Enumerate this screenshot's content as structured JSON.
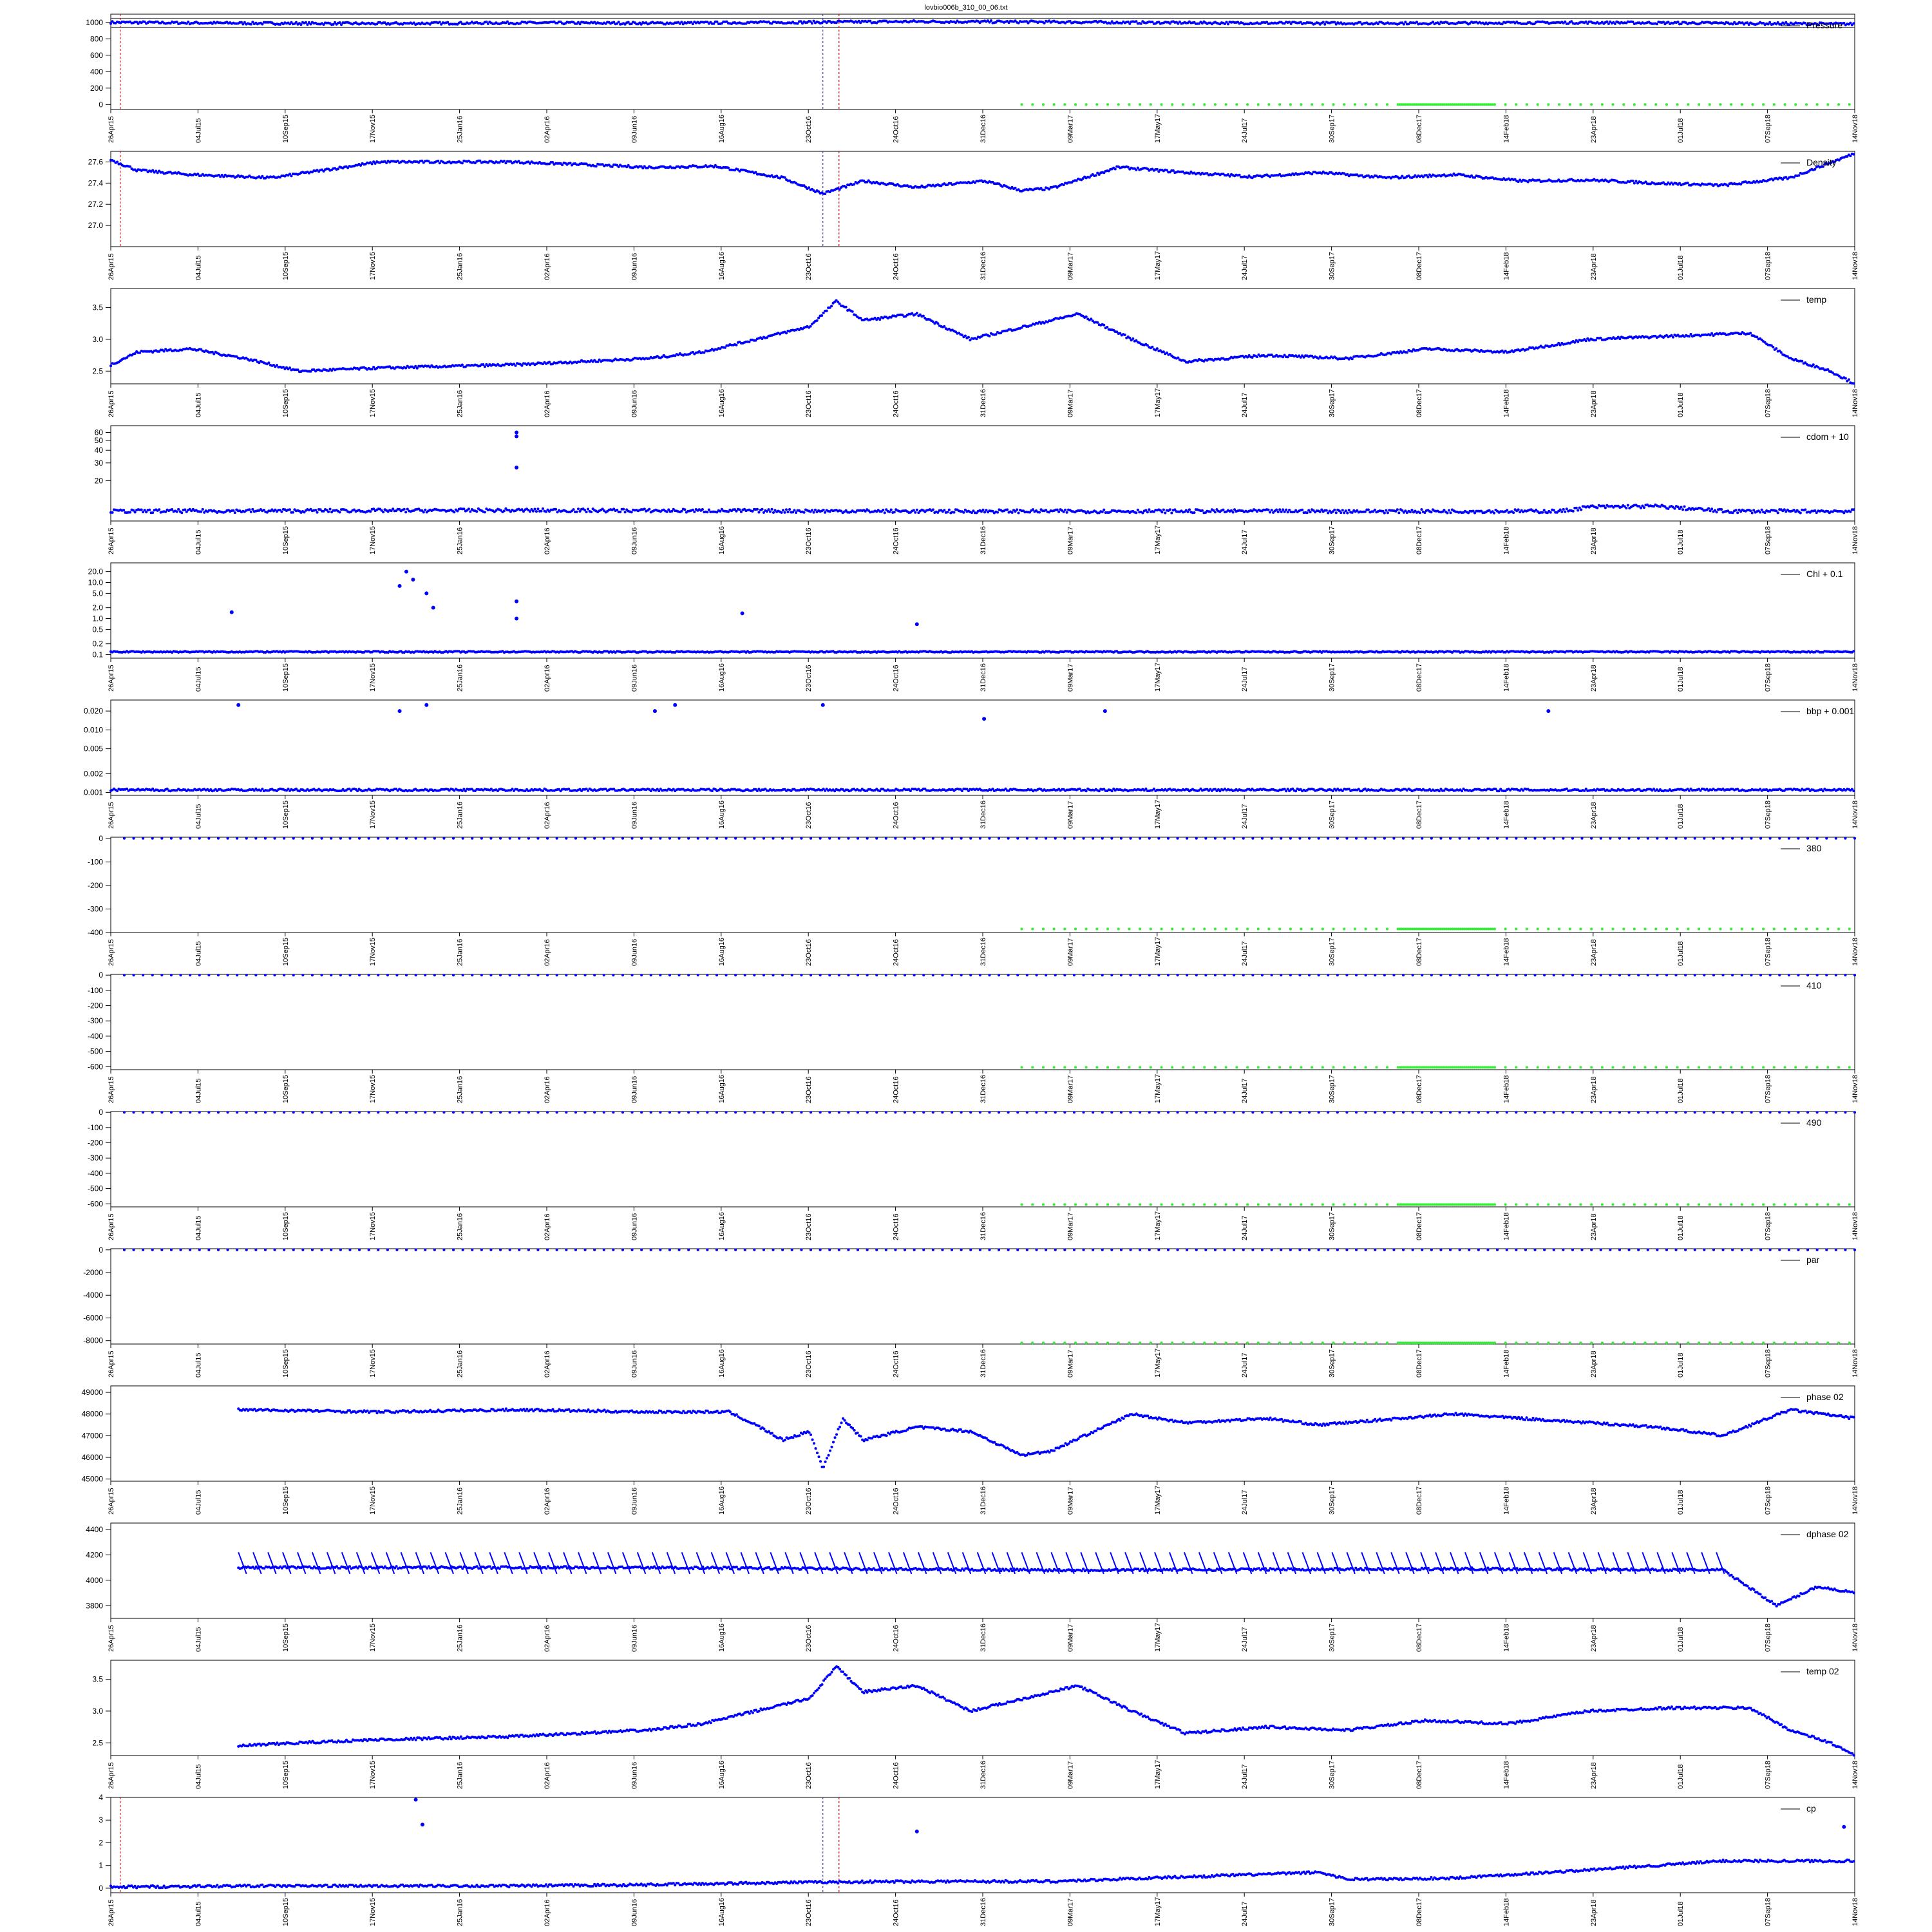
{
  "title": "lovbio006b_310_00_06.txt",
  "x_ticks": [
    "26Apr15",
    "04Jul15",
    "10Sep15",
    "17Nov15",
    "25Jan16",
    "02Apr16",
    "09Jun16",
    "16Aug16",
    "23Oct16",
    "24Oct16",
    "31Dec16",
    "09Mar17",
    "17May17",
    "24Jul17",
    "30Sep17",
    "08Dec17",
    "14Feb18",
    "23Apr18",
    "01Jul18",
    "07Sep18",
    "14Nov18"
  ],
  "x_range_days": [
    0,
    1298
  ],
  "colors": {
    "data": "#0000ff",
    "flag": "#33ee33",
    "vline": "#cc0000",
    "vline_blue": "#4444aa",
    "frame": "#000000"
  },
  "chart_data": [
    {
      "type": "scatter",
      "legend": "Pressure",
      "ylim": [
        -60,
        1100
      ],
      "yticks": [
        "0",
        "200",
        "400",
        "600",
        "800",
        "1000"
      ],
      "yvals": [
        0,
        200,
        400,
        600,
        800,
        1000
      ],
      "series": [
        {
          "name": "",
          "x": [
            0,
            100,
            200,
            300,
            400,
            500,
            600,
            700,
            800,
            900,
            1000,
            1100,
            1200,
            1298
          ],
          "y": [
            1000,
            990,
            985,
            995,
            990,
            1000,
            1010,
            1005,
            995,
            990,
            992,
            998,
            990,
            980
          ]
        }
      ],
      "hlines": [
        940,
        1050
      ],
      "flag_value": 0,
      "flag_x_start": 678,
      "red_vlines": [
        7,
        542
      ],
      "blue_vlines": [
        530
      ]
    },
    {
      "type": "scatter",
      "legend": "Density",
      "ylim": [
        26.8,
        27.7
      ],
      "yticks": [
        "27.0",
        "27.2",
        "27.4",
        "27.6"
      ],
      "yvals": [
        27.0,
        27.2,
        27.4,
        27.6
      ],
      "series": [
        {
          "name": "",
          "x": [
            0,
            20,
            60,
            120,
            200,
            300,
            400,
            450,
            500,
            530,
            560,
            600,
            650,
            678,
            700,
            750,
            800,
            850,
            900,
            950,
            1000,
            1050,
            1100,
            1150,
            1200,
            1250,
            1298
          ],
          "y": [
            27.62,
            27.52,
            27.48,
            27.45,
            27.6,
            27.6,
            27.55,
            27.56,
            27.45,
            27.3,
            27.42,
            27.36,
            27.42,
            27.33,
            27.35,
            27.55,
            27.5,
            27.46,
            27.5,
            27.45,
            27.48,
            27.42,
            27.43,
            27.4,
            27.38,
            27.45,
            27.68
          ]
        }
      ],
      "red_vlines": [
        7,
        542
      ],
      "blue_vlines": [
        530
      ]
    },
    {
      "type": "scatter",
      "legend": "temp",
      "ylim": [
        2.3,
        3.8
      ],
      "yticks": [
        "2.5",
        "3.0",
        "3.5"
      ],
      "yvals": [
        2.5,
        3.0,
        3.5
      ],
      "series": [
        {
          "name": "",
          "x": [
            0,
            20,
            60,
            100,
            140,
            200,
            300,
            400,
            440,
            480,
            520,
            540,
            560,
            600,
            640,
            680,
            720,
            760,
            800,
            860,
            920,
            980,
            1040,
            1100,
            1160,
            1220,
            1250,
            1280,
            1298
          ],
          "y": [
            2.6,
            2.8,
            2.85,
            2.7,
            2.5,
            2.55,
            2.6,
            2.7,
            2.8,
            3.0,
            3.2,
            3.6,
            3.3,
            3.4,
            3.0,
            3.2,
            3.4,
            3.0,
            2.65,
            2.75,
            2.7,
            2.85,
            2.8,
            3.0,
            3.05,
            3.1,
            2.7,
            2.5,
            2.3
          ]
        }
      ]
    },
    {
      "type": "scatter",
      "legend": "cdom + 10",
      "ylim": [
        8,
        70
      ],
      "log": true,
      "yticks": [
        "20",
        "30",
        "40",
        "50",
        "60"
      ],
      "yvals": [
        20,
        30,
        40,
        50,
        60
      ],
      "series": [
        {
          "name": "",
          "x": [
            0,
            300,
            600,
            900,
            1080,
            1100,
            1150,
            1200,
            1298
          ],
          "y": [
            10,
            10.2,
            10,
            10,
            10,
            11,
            11.2,
            10,
            10
          ]
        }
      ],
      "outliers": {
        "x": [
          302,
          302,
          302
        ],
        "y": [
          60,
          55,
          27
        ]
      }
    },
    {
      "type": "scatter",
      "legend": "Chl + 0.1",
      "ylim": [
        0.08,
        35
      ],
      "log": true,
      "yticks": [
        "0.1",
        "0.2",
        "0.5",
        "1.0",
        "2.0",
        "5.0",
        "10.0",
        "20.0"
      ],
      "yvals": [
        0.1,
        0.2,
        0.5,
        1.0,
        2.0,
        5.0,
        10.0,
        20.0
      ],
      "series": [
        {
          "name": "",
          "x": [
            0,
            300,
            600,
            900,
            1298
          ],
          "y": [
            0.12,
            0.12,
            0.12,
            0.12,
            0.12
          ]
        }
      ],
      "outliers": {
        "x": [
          90,
          215,
          220,
          225,
          235,
          240,
          302,
          302,
          470,
          600
        ],
        "y": [
          1.5,
          8,
          20,
          12,
          5,
          2,
          3,
          1,
          1.4,
          0.7
        ]
      }
    },
    {
      "type": "scatter",
      "legend": "bbp + 0.001",
      "ylim": [
        0.0009,
        0.03
      ],
      "log": true,
      "yticks": [
        "0.001",
        "0.002",
        "0.005",
        "0.010",
        "0.020"
      ],
      "yvals": [
        0.001,
        0.002,
        0.005,
        0.01,
        0.02
      ],
      "series": [
        {
          "name": "",
          "x": [
            0,
            300,
            600,
            900,
            1298
          ],
          "y": [
            0.0011,
            0.0011,
            0.0011,
            0.0011,
            0.0011
          ]
        }
      ],
      "outliers": {
        "x": [
          95,
          215,
          235,
          405,
          420,
          530,
          650,
          740,
          1070
        ],
        "y": [
          0.025,
          0.02,
          0.025,
          0.02,
          0.025,
          0.025,
          0.015,
          0.02,
          0.02
        ]
      }
    },
    {
      "type": "scatter",
      "legend": "380",
      "ylim": [
        -400,
        5
      ],
      "yticks": [
        "0",
        "-100",
        "-200",
        "-300",
        "-400"
      ],
      "yvals": [
        0,
        -100,
        -200,
        -300,
        -400
      ],
      "flag_series_value": 0,
      "flag_value": -385,
      "flag_x_start": 678
    },
    {
      "type": "scatter",
      "legend": "410",
      "ylim": [
        -620,
        5
      ],
      "yticks": [
        "0",
        "-100",
        "-200",
        "-300",
        "-400",
        "-500",
        "-600"
      ],
      "yvals": [
        0,
        -100,
        -200,
        -300,
        -400,
        -500,
        -600
      ],
      "flag_series_value": 0,
      "flag_value": -605,
      "flag_x_start": 678
    },
    {
      "type": "scatter",
      "legend": "490",
      "ylim": [
        -620,
        5
      ],
      "yticks": [
        "0",
        "-100",
        "-200",
        "-300",
        "-400",
        "-500",
        "-600"
      ],
      "yvals": [
        0,
        -100,
        -200,
        -300,
        -400,
        -500,
        -600
      ],
      "flag_series_value": 0,
      "flag_value": -605,
      "flag_x_start": 678
    },
    {
      "type": "scatter",
      "legend": "par",
      "ylim": [
        -8300,
        100
      ],
      "yticks": [
        "0",
        "-2000",
        "-4000",
        "-6000",
        "-8000"
      ],
      "yvals": [
        0,
        -2000,
        -4000,
        -6000,
        -8000
      ],
      "flag_series_value": 0,
      "flag_value": -8200,
      "flag_x_start": 678
    },
    {
      "type": "scatter",
      "legend": "phase 02",
      "ylim": [
        44900,
        49300
      ],
      "yticks": [
        "45000",
        "46000",
        "47000",
        "48000",
        "49000"
      ],
      "yvals": [
        45000,
        46000,
        47000,
        48000,
        49000
      ],
      "series": [
        {
          "name": "",
          "x": [
            95,
            200,
            300,
            400,
            460,
            480,
            500,
            520,
            530,
            545,
            560,
            600,
            640,
            678,
            700,
            760,
            800,
            860,
            900,
            960,
            1000,
            1050,
            1100,
            1150,
            1200,
            1250,
            1298
          ],
          "y": [
            48200,
            48100,
            48200,
            48100,
            48100,
            47500,
            46800,
            47200,
            45500,
            47800,
            46800,
            47400,
            47200,
            46100,
            46300,
            48000,
            47600,
            47800,
            47500,
            47800,
            48000,
            47800,
            47600,
            47400,
            47000,
            48200,
            47800
          ]
        }
      ]
    },
    {
      "type": "scatter",
      "legend": "dphase 02",
      "ylim": [
        3700,
        4450
      ],
      "yticks": [
        "3800",
        "4000",
        "4200",
        "4400"
      ],
      "yvals": [
        3800,
        4000,
        4200,
        4400
      ],
      "series": [
        {
          "name": "",
          "x": [
            95,
            400,
            700,
            1000,
            1200,
            1240,
            1270,
            1298
          ],
          "y": [
            4100,
            4100,
            4080,
            4090,
            4080,
            3800,
            3950,
            3900
          ]
        }
      ],
      "band": {
        "low": 4050,
        "high": 4220
      }
    },
    {
      "type": "scatter",
      "legend": "temp 02",
      "ylim": [
        2.3,
        3.8
      ],
      "yticks": [
        "2.5",
        "3.0",
        "3.5"
      ],
      "yvals": [
        2.5,
        3.0,
        3.5
      ],
      "series": [
        {
          "name": "",
          "x": [
            95,
            140,
            200,
            300,
            400,
            440,
            480,
            520,
            540,
            560,
            600,
            640,
            680,
            720,
            760,
            800,
            860,
            920,
            980,
            1040,
            1100,
            1160,
            1220,
            1250,
            1280,
            1298
          ],
          "y": [
            2.45,
            2.5,
            2.55,
            2.6,
            2.7,
            2.8,
            3.0,
            3.2,
            3.7,
            3.3,
            3.4,
            3.0,
            3.2,
            3.4,
            3.0,
            2.65,
            2.75,
            2.7,
            2.85,
            2.8,
            3.0,
            3.05,
            3.05,
            2.7,
            2.5,
            2.3
          ]
        }
      ]
    },
    {
      "type": "scatter",
      "legend": "cp",
      "ylim": [
        -0.2,
        4
      ],
      "yticks": [
        "0",
        "1",
        "2",
        "3",
        "4"
      ],
      "yvals": [
        0,
        1,
        2,
        3,
        4
      ],
      "series": [
        {
          "name": "",
          "x": [
            0,
            100,
            200,
            300,
            400,
            500,
            600,
            700,
            800,
            900,
            920,
            960,
            1000,
            1100,
            1200,
            1298
          ],
          "y": [
            0.05,
            0.1,
            0.1,
            0.1,
            0.15,
            0.25,
            0.3,
            0.3,
            0.5,
            0.7,
            0.4,
            0.4,
            0.45,
            0.8,
            1.2,
            1.2
          ]
        }
      ],
      "outliers": {
        "x": [
          227,
          232,
          600,
          1290
        ],
        "y": [
          3.9,
          2.8,
          2.5,
          2.7
        ]
      },
      "red_vlines": [
        7,
        542
      ],
      "blue_vlines": [
        530
      ]
    }
  ]
}
